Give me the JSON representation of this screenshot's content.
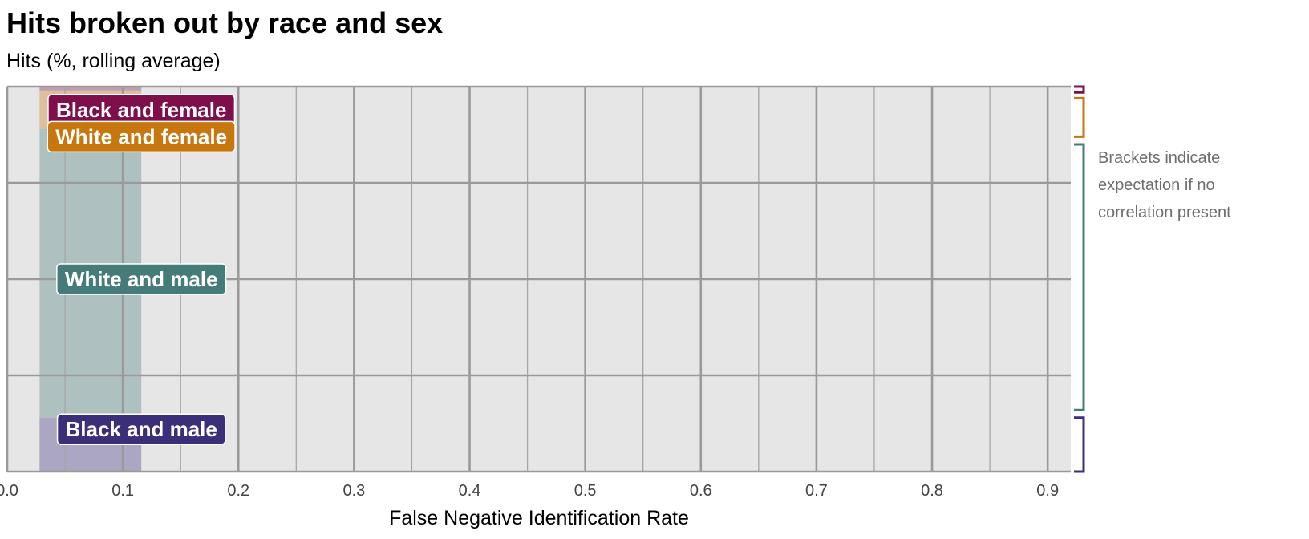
{
  "chart_data": {
    "type": "area",
    "title": "Hits broken out by race and sex",
    "subtitle": "Hits (%, rolling average)",
    "xlabel": "False Negative Identification Rate",
    "ylabel": "",
    "xlim": [
      0,
      0.92
    ],
    "ylim": [
      0,
      100
    ],
    "x_ticks": [
      "0.0",
      "0.1",
      "0.2",
      "0.3",
      "0.4",
      "0.5",
      "0.6",
      "0.7",
      "0.8",
      "0.9"
    ],
    "x_tick_values": [
      0,
      0.1,
      0.2,
      0.3,
      0.4,
      0.5,
      0.6,
      0.7,
      0.8,
      0.9
    ],
    "grid": true,
    "stacked": true,
    "series": [
      {
        "name": "Black and male",
        "color": "#3b2f7a",
        "x": [
          0.028,
          0.116
        ],
        "values": [
          14,
          14
        ],
        "expected": [
          0,
          14
        ]
      },
      {
        "name": "White and male",
        "color": "#457b78",
        "x": [
          0.028,
          0.116
        ],
        "values": [
          75,
          75
        ],
        "expected": [
          16,
          85
        ]
      },
      {
        "name": "White and female",
        "color": "#c8770f",
        "x": [
          0.028,
          0.116
        ],
        "values": [
          10,
          10
        ],
        "expected": [
          87,
          97
        ]
      },
      {
        "name": "Black and female",
        "color": "#7e0f4b",
        "x": [
          0.028,
          0.116
        ],
        "values": [
          1,
          1
        ],
        "expected": [
          98.5,
          100
        ]
      }
    ],
    "annotation": [
      "Brackets indicate",
      "expectation if no",
      "correlation present"
    ]
  }
}
